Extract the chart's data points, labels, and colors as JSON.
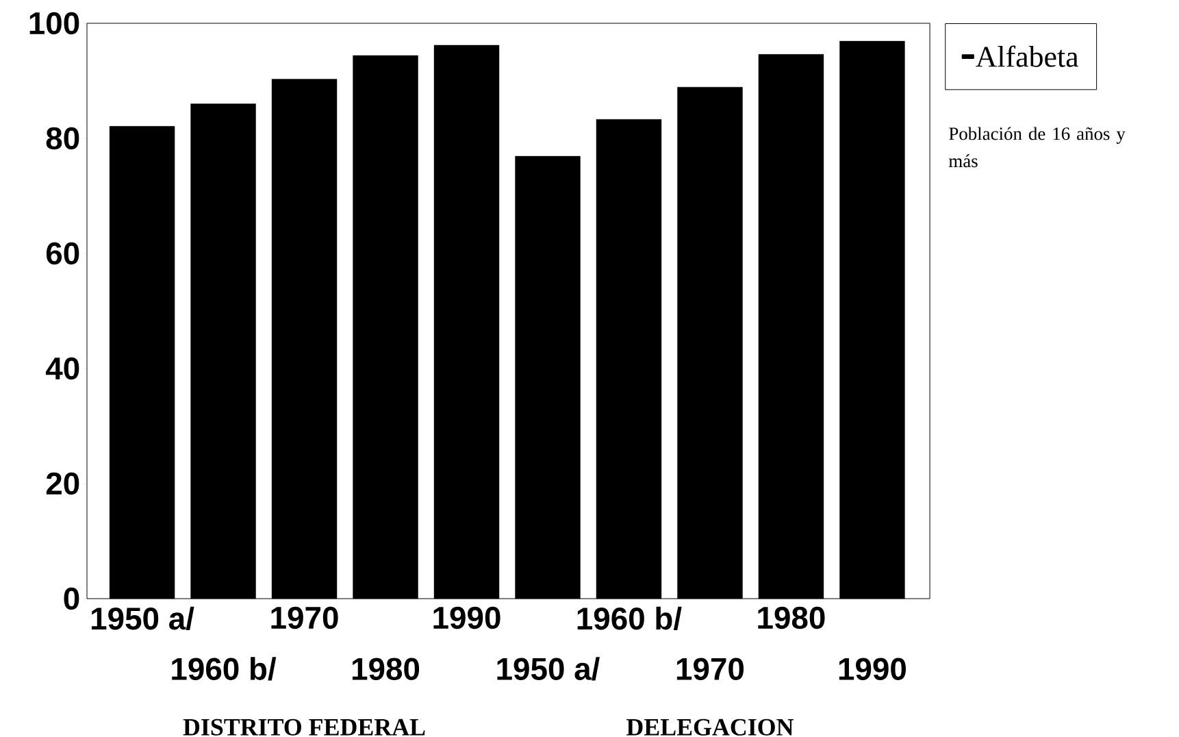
{
  "chart_data": {
    "type": "bar",
    "categories": [
      "1950 a/",
      "1960 b/",
      "1970",
      "1980",
      "1990",
      "1950 a/",
      "1960 b/",
      "1970",
      "1980",
      "1990"
    ],
    "series": [
      {
        "name": "Alfabeta",
        "color": "#000000",
        "values": [
          82.1,
          86.0,
          90.3,
          94.4,
          96.2,
          76.9,
          83.3,
          88.9,
          94.6,
          96.9
        ]
      }
    ],
    "ylim": [
      0,
      100
    ],
    "yticks": [
      0,
      20,
      40,
      60,
      80,
      100
    ],
    "legend": "top right",
    "annotations": [
      "DISTRITO FEDERAL",
      "DELEGACION",
      "Población de 16 años y más"
    ]
  }
}
